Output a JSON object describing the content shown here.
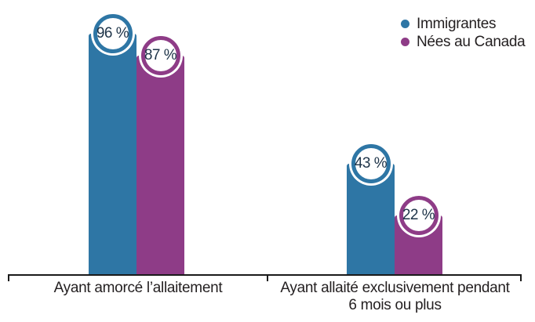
{
  "chart_data": {
    "type": "bar",
    "categories": [
      "Ayant amorcé l’allaitement",
      "Ayant allaité exclusivement pendant\n6 mois ou plus"
    ],
    "series": [
      {
        "name": "Immigrantes",
        "color": "#2e76a5",
        "values": [
          96,
          43
        ]
      },
      {
        "name": "Nées au Canada",
        "color": "#8e3c87",
        "values": [
          87,
          22
        ]
      }
    ],
    "value_suffix": " %",
    "value_labels": [
      [
        "96 %",
        "43 %"
      ],
      [
        "87 %",
        "22 %"
      ]
    ],
    "title": "",
    "xlabel": "",
    "ylabel": "",
    "ylim": [
      0,
      100
    ],
    "grid": false,
    "legend_position": "top-right",
    "value_label_style": "circle-badge-on-bar-top"
  },
  "colors": {
    "value_text": "#1d3348",
    "category_text": "#231f20",
    "axis": "#1a1a1a",
    "background": "#ffffff"
  }
}
